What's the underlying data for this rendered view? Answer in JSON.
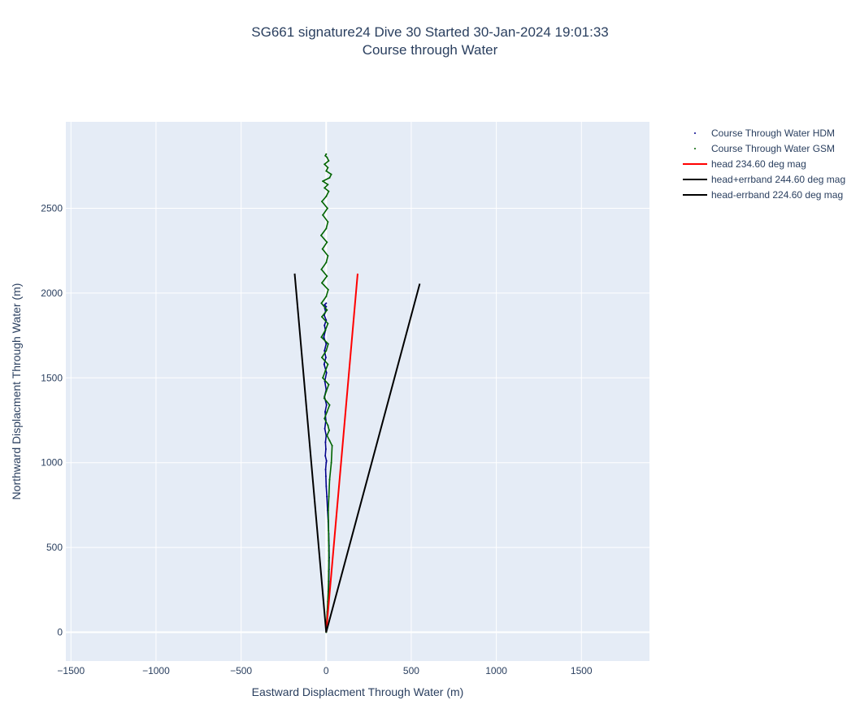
{
  "chart_data": {
    "type": "line",
    "title": "SG661 signature24 Dive 30 Started 30-Jan-2024 19:01:33",
    "subtitle": "Course through Water",
    "xlabel": "Eastward Displacment Through Water (m)",
    "ylabel": "Northward Displacment Through Water (m)",
    "xlim": [
      -1530,
      1900
    ],
    "ylim": [
      -170,
      3010
    ],
    "x_ticks": [
      -1500,
      -1000,
      -500,
      0,
      500,
      1000,
      1500
    ],
    "x_tick_labels": [
      "−1500",
      "−1000",
      "−500",
      "0",
      "500",
      "1000",
      "1500"
    ],
    "y_ticks": [
      0,
      500,
      1000,
      1500,
      2000,
      2500
    ],
    "y_tick_labels": [
      "0",
      "500",
      "1000",
      "1500",
      "2000",
      "2500"
    ],
    "grid": true,
    "legend_position": "top-right outside plot",
    "colors": {
      "plot_bg": "#e5ecf6",
      "grid": "#ffffff",
      "hdm": "#00008b",
      "gsm": "#006400",
      "head": "#ff0000",
      "errband": "#000000"
    },
    "series": [
      {
        "name": "Course Through Water HDM",
        "mode": "markers",
        "color": "#00008b",
        "x": [
          0,
          4,
          8,
          11,
          14,
          16,
          17,
          18,
          17,
          15,
          12,
          8,
          4,
          0,
          -2,
          -3,
          0,
          2,
          -5,
          -2,
          -4,
          0,
          -8,
          -2,
          -6,
          2,
          -10,
          0,
          -8,
          2,
          -12,
          -2,
          -10,
          0,
          -14,
          -4,
          -10,
          0,
          -12,
          -3,
          -8,
          0,
          -10,
          0
        ],
        "y": [
          0,
          50,
          110,
          170,
          230,
          300,
          370,
          440,
          510,
          580,
          650,
          720,
          800,
          860,
          920,
          960,
          1000,
          1010,
          1040,
          1080,
          1120,
          1160,
          1200,
          1250,
          1300,
          1340,
          1390,
          1430,
          1480,
          1530,
          1580,
          1620,
          1660,
          1700,
          1740,
          1780,
          1810,
          1840,
          1870,
          1890,
          1910,
          1920,
          1930,
          1940
        ]
      },
      {
        "name": "Course Through Water GSM",
        "mode": "markers",
        "color": "#006400",
        "x": [
          0,
          3,
          6,
          9,
          12,
          14,
          15,
          16,
          16,
          15,
          14,
          13,
          12,
          16,
          20,
          30,
          35,
          20,
          5,
          18,
          10,
          -10,
          5,
          20,
          -12,
          0,
          15,
          -20,
          -5,
          10,
          -25,
          0,
          12,
          -28,
          -5,
          10,
          -25,
          5,
          -28,
          0,
          12,
          -25,
          5,
          -28,
          0,
          10,
          -22,
          5,
          -30,
          0,
          10,
          -20,
          8,
          -25,
          0,
          15,
          -10,
          10,
          -20,
          20,
          30,
          0,
          10,
          -10,
          15,
          5,
          -5,
          0
        ],
        "y": [
          0,
          60,
          120,
          180,
          240,
          300,
          360,
          420,
          480,
          540,
          600,
          660,
          720,
          800,
          900,
          1000,
          1100,
          1130,
          1160,
          1190,
          1220,
          1260,
          1300,
          1340,
          1380,
          1420,
          1460,
          1500,
          1540,
          1580,
          1620,
          1660,
          1700,
          1740,
          1780,
          1820,
          1860,
          1900,
          1940,
          1980,
          2020,
          2060,
          2100,
          2140,
          2180,
          2220,
          2260,
          2300,
          2340,
          2380,
          2420,
          2460,
          2500,
          2540,
          2570,
          2600,
          2620,
          2640,
          2660,
          2680,
          2700,
          2720,
          2740,
          2760,
          2780,
          2800,
          2810,
          2820
        ]
      },
      {
        "name": "head 234.60 deg mag",
        "mode": "lines",
        "color": "#ff0000",
        "x": [
          0,
          185
        ],
        "y": [
          0,
          2115
        ]
      },
      {
        "name": "head+errband 244.60 deg mag",
        "mode": "lines",
        "color": "#000000",
        "x": [
          0,
          550
        ],
        "y": [
          0,
          2055
        ]
      },
      {
        "name": "head-errband 224.60 deg mag",
        "mode": "lines",
        "color": "#000000",
        "x": [
          0,
          -185
        ],
        "y": [
          0,
          2115
        ]
      }
    ]
  }
}
